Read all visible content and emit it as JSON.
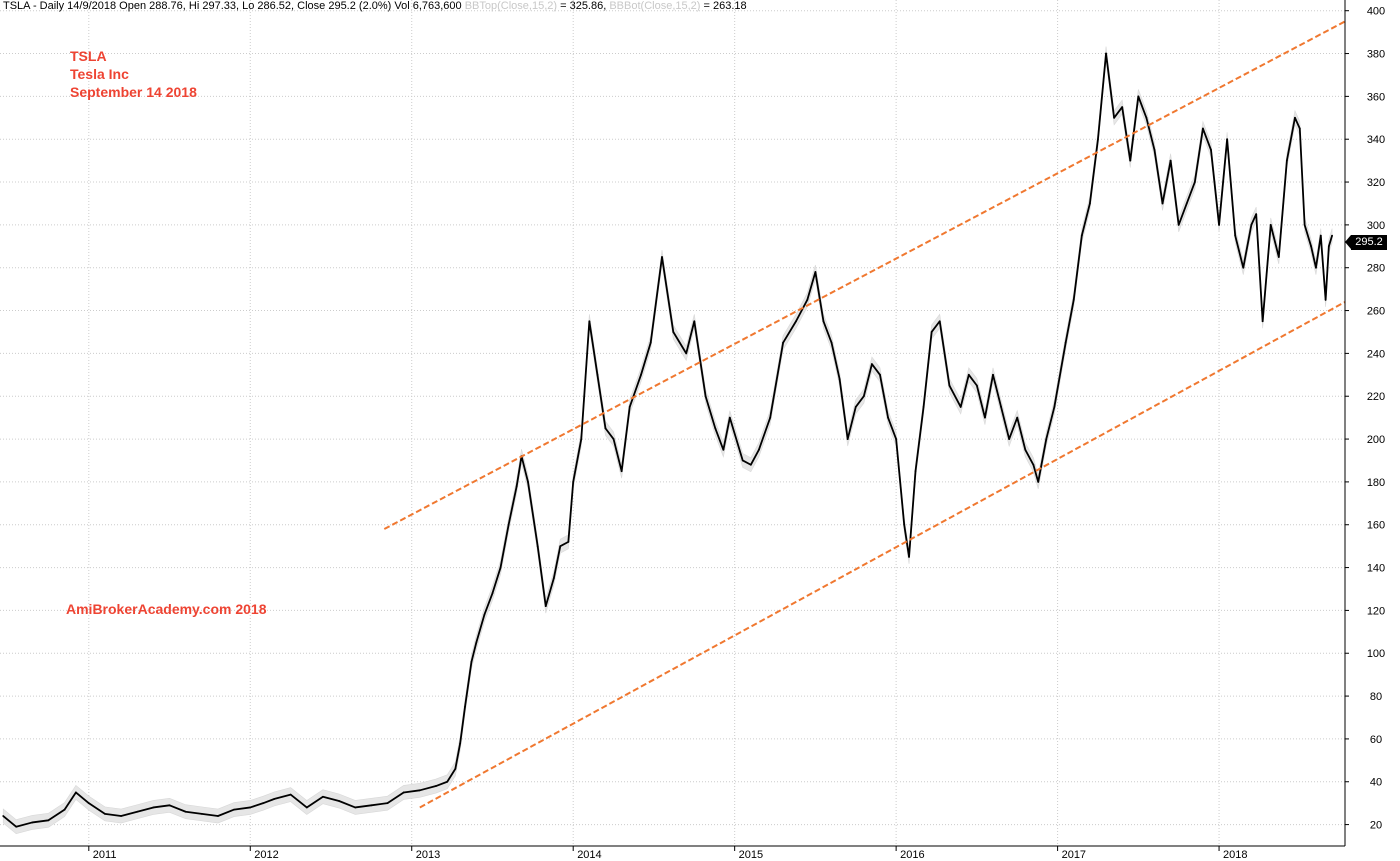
{
  "header": {
    "main": "TSLA - Daily 14/9/2018 Open 288.76, Hi 297.33, Lo 286.52, Close 295.2 (2.0%) Vol 6,763,600",
    "bbtop_label": "BBTop(Close,15,2)",
    "bbtop_value": " = 325.86, ",
    "bbbot_label": "BBBot(Close,15,2)",
    "bbbot_value": " = 263.18"
  },
  "notes": {
    "ticker": "TSLA",
    "company": "Tesla Inc",
    "date": "September 14 2018",
    "watermark": "AmiBrokerAcademy.com  2018"
  },
  "last_price_label": "295.2",
  "colors": {
    "price": "#000000",
    "band": "#e6e6e6",
    "trendline": "#f07830",
    "grid": "#cccccc",
    "note_text": "#ee4433"
  },
  "chart_data": {
    "type": "line",
    "ylim": [
      10,
      405
    ],
    "xlim": [
      2010.45,
      2018.78
    ],
    "yticks": [
      20,
      40,
      60,
      80,
      100,
      120,
      140,
      160,
      180,
      200,
      220,
      240,
      260,
      280,
      300,
      320,
      340,
      360,
      380,
      400
    ],
    "xticks": [
      {
        "x": 2011,
        "label": "2011"
      },
      {
        "x": 2012,
        "label": "2012"
      },
      {
        "x": 2013,
        "label": "2013"
      },
      {
        "x": 2014,
        "label": "2014"
      },
      {
        "x": 2015,
        "label": "2015"
      },
      {
        "x": 2016,
        "label": "2016"
      },
      {
        "x": 2017,
        "label": "2017"
      },
      {
        "x": 2018,
        "label": "2018"
      }
    ],
    "grid": true,
    "series": [
      {
        "x": [
          2010.47,
          2010.55,
          2010.65,
          2010.75,
          2010.85,
          2010.92,
          2011.0,
          2011.1,
          2011.2,
          2011.3,
          2011.4,
          2011.5,
          2011.6,
          2011.7,
          2011.8,
          2011.9,
          2012.0,
          2012.08,
          2012.15,
          2012.25,
          2012.35,
          2012.45,
          2012.55,
          2012.65,
          2012.75,
          2012.85,
          2012.95,
          2013.05,
          2013.15,
          2013.22,
          2013.27,
          2013.3,
          2013.33,
          2013.37,
          2013.4,
          2013.45,
          2013.5,
          2013.55,
          2013.6,
          2013.65,
          2013.68,
          2013.72,
          2013.78,
          2013.83,
          2013.88,
          2013.92,
          2013.97,
          2014.0,
          2014.05,
          2014.1,
          2014.15,
          2014.2,
          2014.25,
          2014.3,
          2014.35,
          2014.42,
          2014.48,
          2014.55,
          2014.62,
          2014.7,
          2014.75,
          2014.82,
          2014.88,
          2014.93,
          2014.97,
          2015.05,
          2015.1,
          2015.15,
          2015.22,
          2015.3,
          2015.38,
          2015.45,
          2015.5,
          2015.55,
          2015.6,
          2015.65,
          2015.7,
          2015.75,
          2015.8,
          2015.85,
          2015.9,
          2015.95,
          2016.0,
          2016.05,
          2016.08,
          2016.12,
          2016.17,
          2016.22,
          2016.27,
          2016.33,
          2016.4,
          2016.45,
          2016.5,
          2016.55,
          2016.6,
          2016.65,
          2016.7,
          2016.75,
          2016.8,
          2016.85,
          2016.88,
          2016.93,
          2016.98,
          2017.05,
          2017.1,
          2017.15,
          2017.2,
          2017.25,
          2017.3,
          2017.35,
          2017.4,
          2017.45,
          2017.5,
          2017.55,
          2017.6,
          2017.65,
          2017.7,
          2017.75,
          2017.8,
          2017.85,
          2017.9,
          2017.95,
          2018.0,
          2018.05,
          2018.1,
          2018.15,
          2018.2,
          2018.23,
          2018.27,
          2018.32,
          2018.37,
          2018.42,
          2018.47,
          2018.5,
          2018.53,
          2018.57,
          2018.6,
          2018.63,
          2018.66,
          2018.68,
          2018.7
        ],
        "values": [
          24,
          19,
          21,
          22,
          27,
          35,
          30,
          25,
          24,
          26,
          28,
          29,
          26,
          25,
          24,
          27,
          28,
          30,
          32,
          34,
          28,
          33,
          31,
          28,
          29,
          30,
          35,
          36,
          38,
          40,
          46,
          58,
          75,
          96,
          105,
          118,
          128,
          140,
          160,
          178,
          192,
          180,
          150,
          122,
          135,
          150,
          152,
          180,
          200,
          255,
          230,
          205,
          200,
          185,
          215,
          230,
          245,
          285,
          250,
          240,
          255,
          220,
          205,
          195,
          210,
          190,
          188,
          195,
          210,
          245,
          255,
          265,
          278,
          255,
          245,
          228,
          200,
          215,
          220,
          235,
          230,
          210,
          200,
          160,
          145,
          185,
          215,
          250,
          255,
          225,
          215,
          230,
          225,
          210,
          230,
          215,
          200,
          210,
          195,
          188,
          180,
          200,
          215,
          245,
          265,
          295,
          310,
          340,
          380,
          350,
          355,
          330,
          360,
          350,
          335,
          310,
          330,
          300,
          310,
          320,
          345,
          335,
          300,
          340,
          295,
          280,
          300,
          305,
          255,
          300,
          285,
          330,
          350,
          345,
          300,
          290,
          280,
          295,
          265,
          290,
          295
        ]
      }
    ],
    "trendlines": [
      {
        "x": [
          2012.83,
          2018.78
        ],
        "y": [
          158,
          395
        ]
      },
      {
        "x": [
          2013.05,
          2018.78
        ],
        "y": [
          28,
          264
        ]
      }
    ]
  }
}
